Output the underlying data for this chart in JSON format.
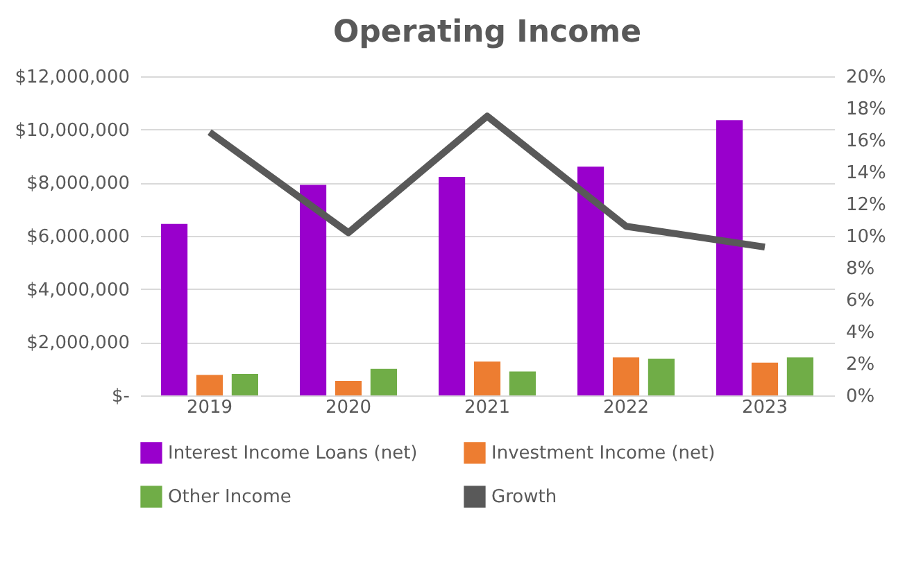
{
  "chart_data": {
    "type": "bar",
    "title": "Operating Income",
    "categories": [
      "2019",
      "2020",
      "2021",
      "2022",
      "2023"
    ],
    "series": [
      {
        "name": "Interest Income Loans (net)",
        "color": "#9900cc",
        "values": [
          6450000,
          7920000,
          8220000,
          8600000,
          10350000
        ]
      },
      {
        "name": "Investment Income (net)",
        "color": "#ed7d31",
        "values": [
          770000,
          550000,
          1270000,
          1430000,
          1230000
        ]
      },
      {
        "name": "Other Income",
        "color": "#70ad47",
        "values": [
          810000,
          1000000,
          900000,
          1380000,
          1430000
        ]
      },
      {
        "name": "Growth",
        "color": "#595959",
        "type": "line",
        "axis": "y2",
        "values": [
          16.5,
          10.2,
          17.5,
          10.6,
          9.3
        ]
      }
    ],
    "ylim": [
      0,
      12000000
    ],
    "yticks": [
      {
        "value": 0,
        "label": "$-"
      },
      {
        "value": 2000000,
        "label": "$2,000,000"
      },
      {
        "value": 4000000,
        "label": "$4,000,000"
      },
      {
        "value": 6000000,
        "label": "$6,000,000"
      },
      {
        "value": 8000000,
        "label": "$8,000,000"
      },
      {
        "value": 10000000,
        "label": "$10,000,000"
      },
      {
        "value": 12000000,
        "label": "$12,000,000"
      }
    ],
    "y2lim": [
      0,
      20
    ],
    "y2ticks": [
      {
        "value": 0,
        "label": "0%"
      },
      {
        "value": 2,
        "label": "2%"
      },
      {
        "value": 4,
        "label": "4%"
      },
      {
        "value": 6,
        "label": "6%"
      },
      {
        "value": 8,
        "label": "8%"
      },
      {
        "value": 10,
        "label": "10%"
      },
      {
        "value": 12,
        "label": "12%"
      },
      {
        "value": 14,
        "label": "14%"
      },
      {
        "value": 16,
        "label": "16%"
      },
      {
        "value": 18,
        "label": "18%"
      },
      {
        "value": 20,
        "label": "20%"
      }
    ],
    "grid": "y",
    "legend": "bottom",
    "marker": "none",
    "line_style": "solid"
  }
}
